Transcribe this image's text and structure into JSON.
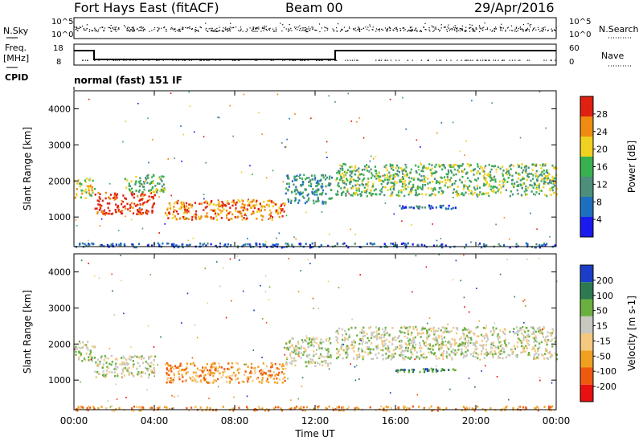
{
  "header": {
    "title": "Fort Hays East (fitACF)",
    "beam": "Beam 00",
    "date": "29/Apr/2016"
  },
  "strip": {
    "nsky_label": "N.Sky",
    "nsearch_label": "N.Search",
    "nsky_ticks": [
      "10^5",
      "10^0"
    ],
    "nsearch_ticks": [
      "10^5",
      "10^0"
    ],
    "freq_label": "Freq.",
    "freq_unit": "[MHz]",
    "freq_ticks": [
      "18",
      "8"
    ],
    "nave_label": "Nave",
    "nave_ticks": [
      "60",
      "0"
    ],
    "cpid_label": "CPID",
    "cpid_text": "normal (fast) 151 IF"
  },
  "chart_data": [
    {
      "type": "heatmap",
      "name": "power",
      "ylabel": "Slant Range [km]",
      "yticks": [
        1000,
        2000,
        3000,
        4000
      ],
      "ylim": [
        180,
        4500
      ],
      "xlim": [
        0,
        24
      ],
      "colorbar_label": "Power [dB]",
      "colorbar_ticks": [
        "4",
        "8",
        "12",
        "16",
        "20",
        "24",
        "28"
      ],
      "colors": [
        "#1a1aee",
        "#1f6fc0",
        "#4d8f7a",
        "#38b050",
        "#f0d020",
        "#f08a10",
        "#e02010"
      ],
      "echo_regions": [
        {
          "t0": 0.0,
          "t1": 1.0,
          "r0": 1550,
          "r1": 2100,
          "level": 4
        },
        {
          "t0": 1.0,
          "t1": 4.0,
          "r0": 1100,
          "r1": 1700,
          "level": 6
        },
        {
          "t0": 2.5,
          "t1": 4.5,
          "r0": 1700,
          "r1": 2200,
          "level": 3
        },
        {
          "t0": 4.5,
          "t1": 10.5,
          "r0": 950,
          "r1": 1500,
          "level": 5
        },
        {
          "t0": 10.5,
          "t1": 12.8,
          "r0": 1400,
          "r1": 2200,
          "level": 2
        },
        {
          "t0": 13.0,
          "t1": 24.0,
          "r0": 1600,
          "r1": 2500,
          "level": 3
        },
        {
          "t0": 16.0,
          "t1": 19.0,
          "r0": 1250,
          "r1": 1350,
          "level": 1
        },
        {
          "t0": 0.0,
          "t1": 24.0,
          "r0": 180,
          "r1": 300,
          "level": 1
        }
      ]
    },
    {
      "type": "heatmap",
      "name": "velocity",
      "ylabel": "Slant Range [km]",
      "yticks": [
        1000,
        2000,
        3000,
        4000
      ],
      "ylim": [
        180,
        4500
      ],
      "xlim": [
        0,
        24
      ],
      "xticks": [
        "00:00",
        "04:00",
        "08:00",
        "12:00",
        "16:00",
        "20:00",
        "00:00"
      ],
      "xlabel": "Time UT",
      "colorbar_label": "Velocity [m s-1]",
      "colorbar_ticks": [
        "-200",
        "-100",
        "-50",
        "-15",
        "15",
        "50",
        "100",
        "200"
      ],
      "colors": [
        "#e81010",
        "#f05a10",
        "#f0a020",
        "#f5c880",
        "#c8c8c0",
        "#6ab040",
        "#2d7a50",
        "#1a3ec8"
      ],
      "echo_regions": [
        {
          "t0": 0.0,
          "t1": 1.0,
          "r0": 1550,
          "r1": 2100,
          "level": 4
        },
        {
          "t0": 1.0,
          "t1": 4.0,
          "r0": 1100,
          "r1": 1700,
          "level": 4
        },
        {
          "t0": 4.5,
          "t1": 10.5,
          "r0": 950,
          "r1": 1500,
          "level": 2
        },
        {
          "t0": 10.5,
          "t1": 12.8,
          "r0": 1400,
          "r1": 2200,
          "level": 4
        },
        {
          "t0": 13.0,
          "t1": 24.0,
          "r0": 1600,
          "r1": 2500,
          "level": 4
        },
        {
          "t0": 16.0,
          "t1": 19.0,
          "r0": 1250,
          "r1": 1350,
          "level": 6
        },
        {
          "t0": 0.0,
          "t1": 24.0,
          "r0": 180,
          "r1": 300,
          "level": 2
        }
      ]
    }
  ]
}
